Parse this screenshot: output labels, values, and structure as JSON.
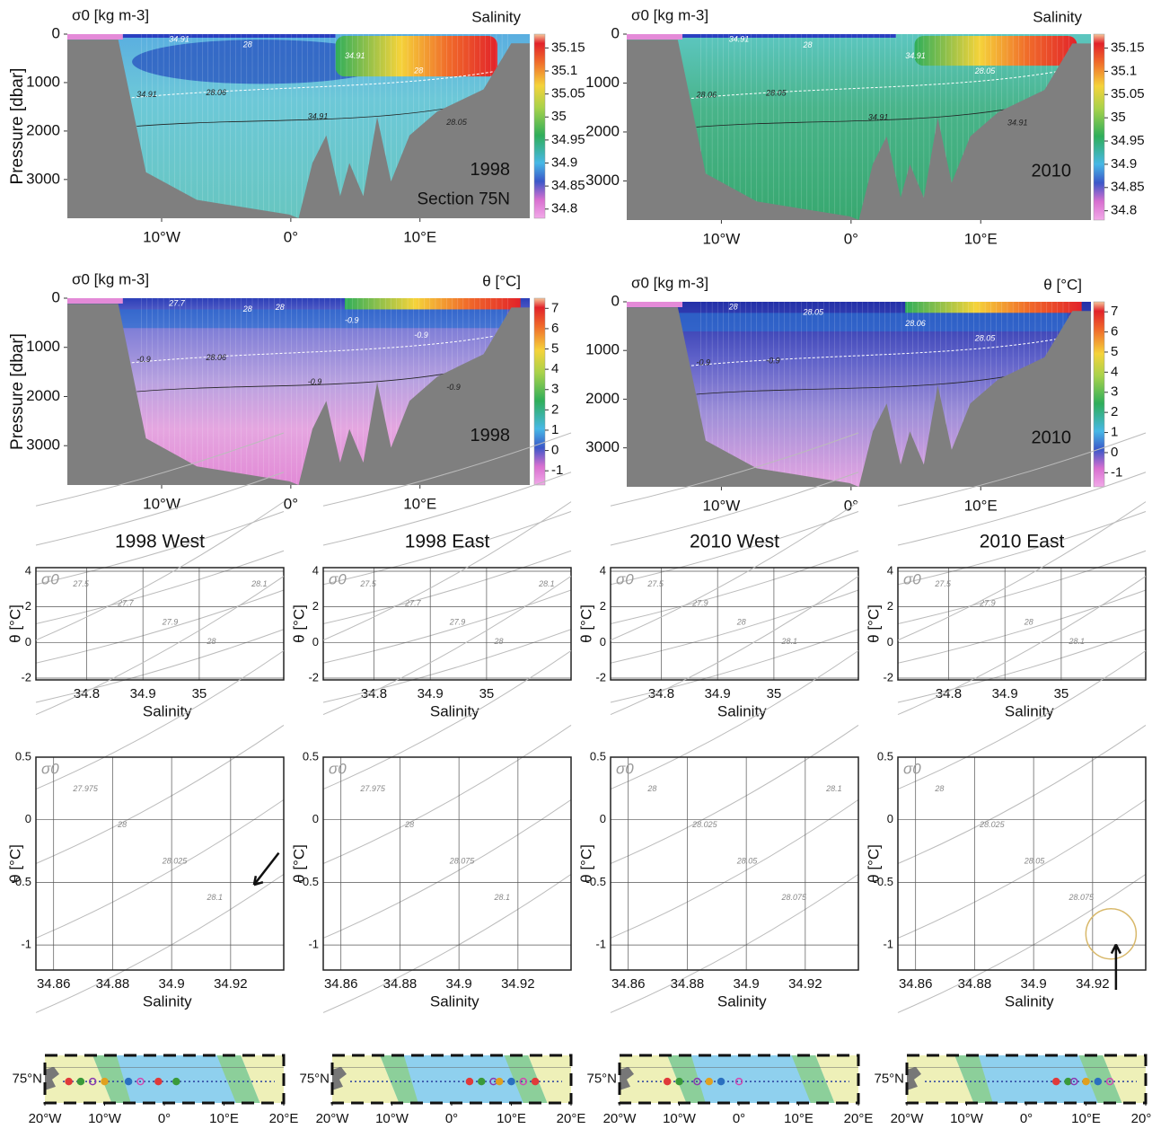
{
  "chart_data": [
    {
      "type": "section",
      "corner_label": "σ0 [kg m-3]",
      "variable": "Salinity",
      "year": "1998",
      "section_label": "Section 75N",
      "ylabel": "Pressure [dbar]",
      "xlim": [
        -17.3,
        18.5
      ],
      "xticks": [
        {
          "value": -10,
          "label": "10°W"
        },
        {
          "value": 0,
          "label": "0°"
        },
        {
          "value": 10,
          "label": "10°E"
        }
      ],
      "ylim": [
        0,
        3800
      ],
      "y_reversed": true,
      "yticks": [
        0,
        1000,
        2000,
        3000
      ],
      "clim": [
        34.78,
        35.18
      ],
      "cticks": [
        35.15,
        35.1,
        35.05,
        35,
        34.95,
        34.9,
        34.85,
        34.8
      ],
      "contour_labels": [
        "34.91",
        "28",
        "34.91",
        "28",
        "34.91",
        "28.06",
        "34.91",
        "28.05"
      ]
    },
    {
      "type": "section",
      "corner_label": "σ0 [kg m-3]",
      "variable": "Salinity",
      "year": "2010",
      "xlim": [
        -17.3,
        18.5
      ],
      "xticks": [
        {
          "value": -10,
          "label": "10°W"
        },
        {
          "value": 0,
          "label": "0°"
        },
        {
          "value": 10,
          "label": "10°E"
        }
      ],
      "ylim": [
        0,
        3800
      ],
      "y_reversed": true,
      "yticks": [
        0,
        1000,
        2000,
        3000
      ],
      "clim": [
        34.78,
        35.18
      ],
      "cticks": [
        35.15,
        35.1,
        35.05,
        35,
        34.95,
        34.9,
        34.85,
        34.8
      ],
      "contour_labels": [
        "34.91",
        "28",
        "34.91",
        "28.05",
        "28.06",
        "28.05",
        "34.91",
        "34.91"
      ]
    },
    {
      "type": "section",
      "corner_label": "σ0 [kg m-3]",
      "variable": "θ [°C]",
      "year": "1998",
      "ylabel": "Pressure [dbar]",
      "xlim": [
        -17.3,
        18.5
      ],
      "xticks": [
        {
          "value": -10,
          "label": "10°W"
        },
        {
          "value": 0,
          "label": "0°"
        },
        {
          "value": 10,
          "label": "10°E"
        }
      ],
      "ylim": [
        0,
        3800
      ],
      "y_reversed": true,
      "yticks": [
        0,
        1000,
        2000,
        3000
      ],
      "clim": [
        -1.7,
        7.5
      ],
      "cticks": [
        7,
        6,
        5,
        4,
        3,
        2,
        1,
        0,
        -1
      ],
      "contour_labels": [
        "27.7",
        "28",
        "-0.9",
        "-0.9",
        "-0.9",
        "28.06",
        "-0.9",
        "-0.9",
        "28"
      ]
    },
    {
      "type": "section",
      "corner_label": "σ0 [kg m-3]",
      "variable": "θ [°C]",
      "year": "2010",
      "xlim": [
        -17.3,
        18.5
      ],
      "xticks": [
        {
          "value": -10,
          "label": "10°W"
        },
        {
          "value": 0,
          "label": "0°"
        },
        {
          "value": 10,
          "label": "10°E"
        }
      ],
      "ylim": [
        0,
        3800
      ],
      "y_reversed": true,
      "yticks": [
        0,
        1000,
        2000,
        3000
      ],
      "clim": [
        -1.7,
        7.5
      ],
      "cticks": [
        7,
        6,
        5,
        4,
        3,
        2,
        1,
        0,
        -1
      ],
      "contour_labels": [
        "28",
        "28.05",
        "28.06",
        "28.05",
        "-0.9",
        "-0.9"
      ]
    },
    {
      "type": "ts",
      "title": "1998 West",
      "corner_label": "σ0",
      "xlabel": "Salinity",
      "ylabel": "θ [°C]",
      "grid": true,
      "xlim": [
        34.71,
        35.15
      ],
      "xticks": [
        34.8,
        34.9,
        35
      ],
      "ylim": [
        -2.1,
        4.2
      ],
      "yticks": [
        -2,
        0,
        2,
        4
      ],
      "contour_labels": [
        "27.5",
        "27.7",
        "27.9",
        "28",
        "28.1"
      ]
    },
    {
      "type": "ts",
      "title": "1998 East",
      "corner_label": "σ0",
      "xlabel": "Salinity",
      "ylabel": "θ [°C]",
      "grid": true,
      "xlim": [
        34.71,
        35.15
      ],
      "xticks": [
        34.8,
        34.9,
        35
      ],
      "ylim": [
        -2.1,
        4.2
      ],
      "yticks": [
        -2,
        0,
        2,
        4
      ],
      "contour_labels": [
        "27.5",
        "27.7",
        "27.9",
        "28",
        "28.1"
      ]
    },
    {
      "type": "ts",
      "title": "2010 West",
      "corner_label": "σ0",
      "xlabel": "Salinity",
      "ylabel": "θ [°C]",
      "grid": true,
      "xlim": [
        34.71,
        35.15
      ],
      "xticks": [
        34.8,
        34.9,
        35
      ],
      "ylim": [
        -2.1,
        4.2
      ],
      "yticks": [
        -2,
        0,
        2,
        4
      ],
      "contour_labels": [
        "27.5",
        "27.9",
        "28",
        "28.1"
      ]
    },
    {
      "type": "ts",
      "title": "2010 East",
      "corner_label": "σ0",
      "xlabel": "Salinity",
      "ylabel": "θ [°C]",
      "grid": true,
      "xlim": [
        34.71,
        35.15
      ],
      "xticks": [
        34.8,
        34.9,
        35
      ],
      "ylim": [
        -2.1,
        4.2
      ],
      "yticks": [
        -2,
        0,
        2,
        4
      ],
      "contour_labels": [
        "27.5",
        "27.9",
        "28",
        "28.1"
      ]
    },
    {
      "type": "ts",
      "corner_label": "σ0",
      "xlabel": "Salinity",
      "ylabel": "θ [°C]",
      "grid": true,
      "arrow": "left",
      "xlim": [
        34.854,
        34.938
      ],
      "xticks": [
        34.86,
        34.88,
        34.9,
        34.92
      ],
      "ylim": [
        -1.2,
        0.5
      ],
      "yticks": [
        -1,
        -0.5,
        0,
        0.5
      ],
      "contour_labels": [
        "27.975",
        "28",
        "28.025",
        "28.1"
      ]
    },
    {
      "type": "ts",
      "corner_label": "σ0",
      "xlabel": "Salinity",
      "ylabel": "θ [°C]",
      "grid": true,
      "xlim": [
        34.854,
        34.938
      ],
      "xticks": [
        34.86,
        34.88,
        34.9,
        34.92
      ],
      "ylim": [
        -1.2,
        0.5
      ],
      "yticks": [
        -1,
        -0.5,
        0,
        0.5
      ],
      "contour_labels": [
        "27.975",
        "28",
        "28.075",
        "28.1"
      ]
    },
    {
      "type": "ts",
      "corner_label": "σ0",
      "xlabel": "Salinity",
      "ylabel": "θ [°C]",
      "grid": true,
      "xlim": [
        34.854,
        34.938
      ],
      "xticks": [
        34.86,
        34.88,
        34.9,
        34.92
      ],
      "ylim": [
        -1.2,
        0.5
      ],
      "yticks": [
        -1,
        -0.5,
        0,
        0.5
      ],
      "contour_labels": [
        "28",
        "28.025",
        "28.05",
        "28.075",
        "28.1"
      ]
    },
    {
      "type": "ts",
      "corner_label": "σ0",
      "xlabel": "Salinity",
      "ylabel": "θ [°C]",
      "grid": true,
      "arrow": "up",
      "xlim": [
        34.854,
        34.938
      ],
      "xticks": [
        34.86,
        34.88,
        34.9,
        34.92
      ],
      "ylim": [
        -1.2,
        0.5
      ],
      "yticks": [
        -1,
        -0.5,
        0,
        0.5
      ],
      "contour_labels": [
        "28",
        "28.025",
        "28.05",
        "28.075"
      ]
    },
    {
      "type": "map",
      "ylabel": "75°N",
      "xlim": [
        -20,
        20
      ],
      "xticks": [
        {
          "value": -20,
          "label": "20°W"
        },
        {
          "value": -10,
          "label": "10°W"
        },
        {
          "value": 0,
          "label": "0°"
        },
        {
          "value": 10,
          "label": "10°E"
        },
        {
          "value": 20,
          "label": "20°E"
        }
      ]
    },
    {
      "type": "map",
      "ylabel": "75°N",
      "xlim": [
        -20,
        20
      ],
      "xticks": [
        {
          "value": -20,
          "label": "20°W"
        },
        {
          "value": -10,
          "label": "10°W"
        },
        {
          "value": 0,
          "label": "0°"
        },
        {
          "value": 10,
          "label": "10°E"
        },
        {
          "value": 20,
          "label": "20°E"
        }
      ]
    },
    {
      "type": "map",
      "ylabel": "75°N",
      "xlim": [
        -20,
        20
      ],
      "xticks": [
        {
          "value": -20,
          "label": "20°W"
        },
        {
          "value": -10,
          "label": "10°W"
        },
        {
          "value": 0,
          "label": "0°"
        },
        {
          "value": 10,
          "label": "10°E"
        },
        {
          "value": 20,
          "label": "20°E"
        }
      ]
    },
    {
      "type": "map",
      "ylabel": "75°N",
      "xlim": [
        -20,
        20
      ],
      "xticks": [
        {
          "value": -20,
          "label": "20°W"
        },
        {
          "value": -10,
          "label": "10°W"
        },
        {
          "value": 0,
          "label": "0°"
        },
        {
          "value": 10,
          "label": "10°E"
        },
        {
          "value": 20,
          "label": "20°E"
        }
      ]
    }
  ]
}
